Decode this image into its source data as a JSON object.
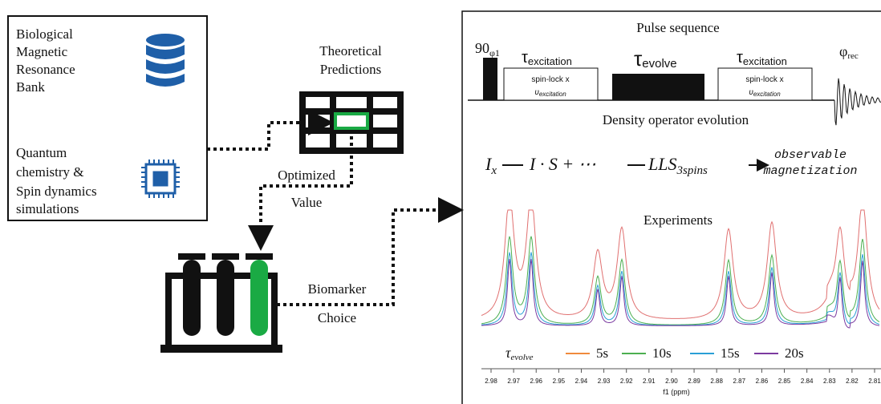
{
  "left_box": {
    "database": [
      "Biological",
      "Magnetic",
      "Resonance",
      "Bank"
    ],
    "simulation": [
      "Quantum",
      "chemistry &",
      "Spin dynamics",
      "simulations"
    ]
  },
  "predictions": {
    "title": [
      "Theoretical",
      "Predictions"
    ],
    "optimized": [
      "Optimized",
      "Value"
    ]
  },
  "biomarker": [
    "Biomarker",
    "Choice"
  ],
  "panel": {
    "pulse_title": "Pulse sequence",
    "pulse": {
      "first": "90",
      "first_sub": "φ1",
      "tau": "τ",
      "exc_sub": "excitation",
      "evolve_sub": "evolve",
      "box_line1": "spin-lock x",
      "box_nu": "υ",
      "box_nu_sub": "excitation",
      "rec": "φ",
      "rec_sub": "rec"
    },
    "density_title": "Density operator evolution",
    "equation": {
      "ix": "I",
      "ix_sub": "x",
      "mid": "I · S + ⋯",
      "lls": "LLS",
      "lls_sub": "3spins",
      "obs1": "observable",
      "obs2": "magnetization"
    },
    "experiments_title": "Experiments",
    "legend": {
      "label": "τ",
      "label_sub": "evolve",
      "entries": [
        "5s",
        "10s",
        "15s",
        "20s"
      ]
    },
    "axis": {
      "ticks": [
        "2.98",
        "2.97",
        "2.96",
        "2.95",
        "2.94",
        "2.93",
        "2.92",
        "2.91",
        "2.90",
        "2.89",
        "2.88",
        "2.87",
        "2.86",
        "2.85",
        "2.84",
        "2.83",
        "2.82",
        "2.81"
      ],
      "label": "f1 (ppm)"
    }
  }
}
